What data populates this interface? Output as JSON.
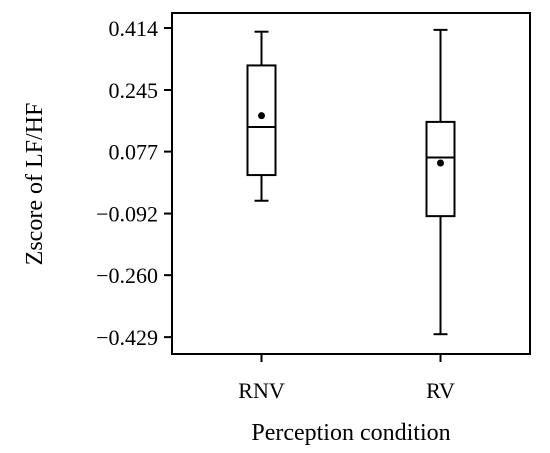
{
  "chart_data": {
    "type": "box",
    "title": "",
    "xlabel": "Perception condition",
    "ylabel": "Zscore of LF/HF",
    "y_ticks": [
      0.414,
      0.245,
      0.077,
      -0.092,
      -0.26,
      -0.429
    ],
    "y_tick_labels": [
      "0.414",
      "0.245",
      "0.077",
      "−0.092",
      "−0.260",
      "−0.429"
    ],
    "ylim": [
      -0.475,
      0.455
    ],
    "categories": [
      "RNV",
      "RV"
    ],
    "boxes": [
      {
        "category": "RNV",
        "whisker_low": -0.057,
        "q1": 0.013,
        "median": 0.144,
        "q3": 0.312,
        "whisker_high": 0.404,
        "mean": 0.175
      },
      {
        "category": "RV",
        "whisker_low": -0.421,
        "q1": -0.099,
        "median": 0.061,
        "q3": 0.158,
        "whisker_high": 0.409,
        "mean": 0.046
      }
    ],
    "grid": false,
    "legend": "none"
  }
}
